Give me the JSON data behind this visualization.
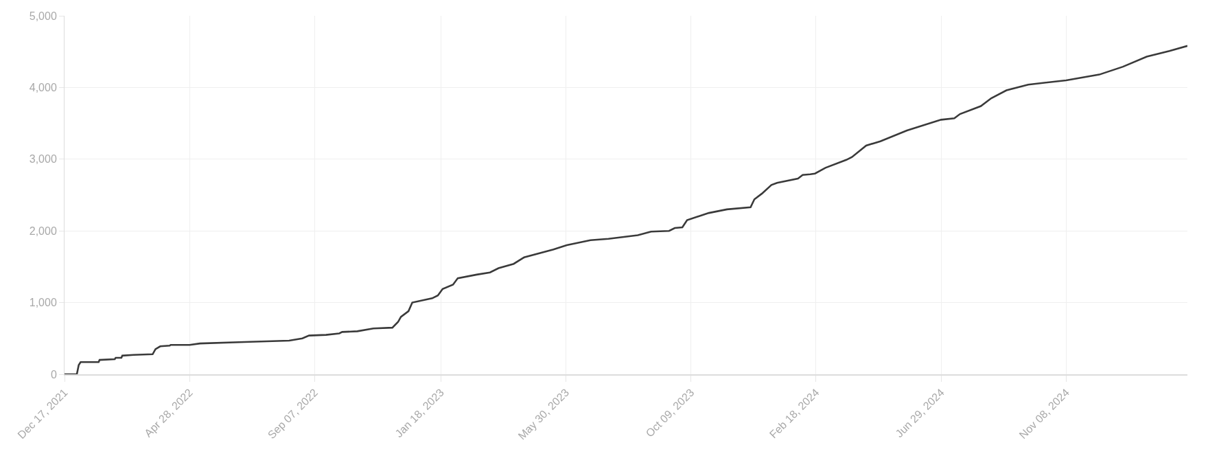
{
  "chart_data": {
    "type": "line",
    "x": [
      "2021-12-17",
      "2021-12-30",
      "2022-01-01",
      "2022-01-03",
      "2022-01-22",
      "2022-01-23",
      "2022-02-08",
      "2022-02-09",
      "2022-02-15",
      "2022-02-16",
      "2022-02-28",
      "2022-03-20",
      "2022-03-23",
      "2022-03-28",
      "2022-04-07",
      "2022-04-08",
      "2022-04-28",
      "2022-05-09",
      "2022-06-25",
      "2022-08-11",
      "2022-08-25",
      "2022-09-01",
      "2022-09-19",
      "2022-10-03",
      "2022-10-06",
      "2022-10-22",
      "2022-11-08",
      "2022-11-28",
      "2022-12-04",
      "2022-12-07",
      "2022-12-15",
      "2022-12-19",
      "2023-01-09",
      "2023-01-15",
      "2023-01-20",
      "2023-01-31",
      "2023-02-05",
      "2023-02-25",
      "2023-03-11",
      "2023-03-20",
      "2023-04-05",
      "2023-04-16",
      "2023-05-17",
      "2023-05-31",
      "2023-06-25",
      "2023-07-14",
      "2023-08-14",
      "2023-08-28",
      "2023-09-16",
      "2023-09-22",
      "2023-09-30",
      "2023-10-05",
      "2023-10-28",
      "2023-11-16",
      "2023-12-11",
      "2023-12-15",
      "2023-12-23",
      "2024-01-02",
      "2024-01-08",
      "2024-01-30",
      "2024-02-04",
      "2024-02-12",
      "2024-02-17",
      "2024-02-28",
      "2024-03-21",
      "2024-03-27",
      "2024-04-11",
      "2024-04-26",
      "2024-05-24",
      "2024-06-29",
      "2024-07-13",
      "2024-07-19",
      "2024-08-10",
      "2024-08-21",
      "2024-09-06",
      "2024-09-29",
      "2024-11-08",
      "2024-12-13",
      "2025-01-07",
      "2025-02-01",
      "2025-02-25",
      "2025-03-16"
    ],
    "series": [
      {
        "color": "#3a3a3a",
        "values": [
          0,
          0,
          130,
          170,
          170,
          200,
          210,
          230,
          230,
          260,
          270,
          280,
          350,
          390,
          400,
          410,
          410,
          430,
          450,
          470,
          500,
          540,
          550,
          570,
          590,
          600,
          640,
          650,
          730,
          800,
          880,
          1000,
          1060,
          1100,
          1190,
          1250,
          1340,
          1390,
          1420,
          1480,
          1540,
          1630,
          1740,
          1800,
          1870,
          1890,
          1940,
          1990,
          2000,
          2040,
          2050,
          2150,
          2250,
          2300,
          2330,
          2440,
          2520,
          2640,
          2670,
          2730,
          2780,
          2790,
          2800,
          2880,
          2990,
          3030,
          3190,
          3250,
          3400,
          3550,
          3570,
          3630,
          3740,
          3850,
          3960,
          4040,
          4100,
          4180,
          4290,
          4430,
          4510,
          4580
        ]
      }
    ],
    "xlim": [
      "2021-12-17",
      "2025-03-16"
    ],
    "xticks": [
      {
        "value": "2021-12-17",
        "label": "Dec 17, 2021"
      },
      {
        "value": "2022-04-28",
        "label": "Apr 28, 2022"
      },
      {
        "value": "2022-09-07",
        "label": "Sep 07, 2022"
      },
      {
        "value": "2023-01-18",
        "label": "Jan 18, 2023"
      },
      {
        "value": "2023-05-30",
        "label": "May 30, 2023"
      },
      {
        "value": "2023-10-09",
        "label": "Oct 09, 2023"
      },
      {
        "value": "2024-02-18",
        "label": "Feb 18, 2024"
      },
      {
        "value": "2024-06-29",
        "label": "Jun 29, 2024"
      },
      {
        "value": "2024-11-08",
        "label": "Nov 08, 2024"
      }
    ],
    "ylim": [
      0,
      5000
    ],
    "yticks": [
      0,
      {
        "value": 1000,
        "label": "1,000"
      },
      {
        "value": 2000,
        "label": "2,000"
      },
      {
        "value": 3000,
        "label": "3,000"
      },
      {
        "value": 4000,
        "label": "4,000"
      },
      {
        "value": 5000,
        "label": "5,000"
      }
    ],
    "grid": true,
    "marker": "none",
    "line_style": "solid"
  }
}
